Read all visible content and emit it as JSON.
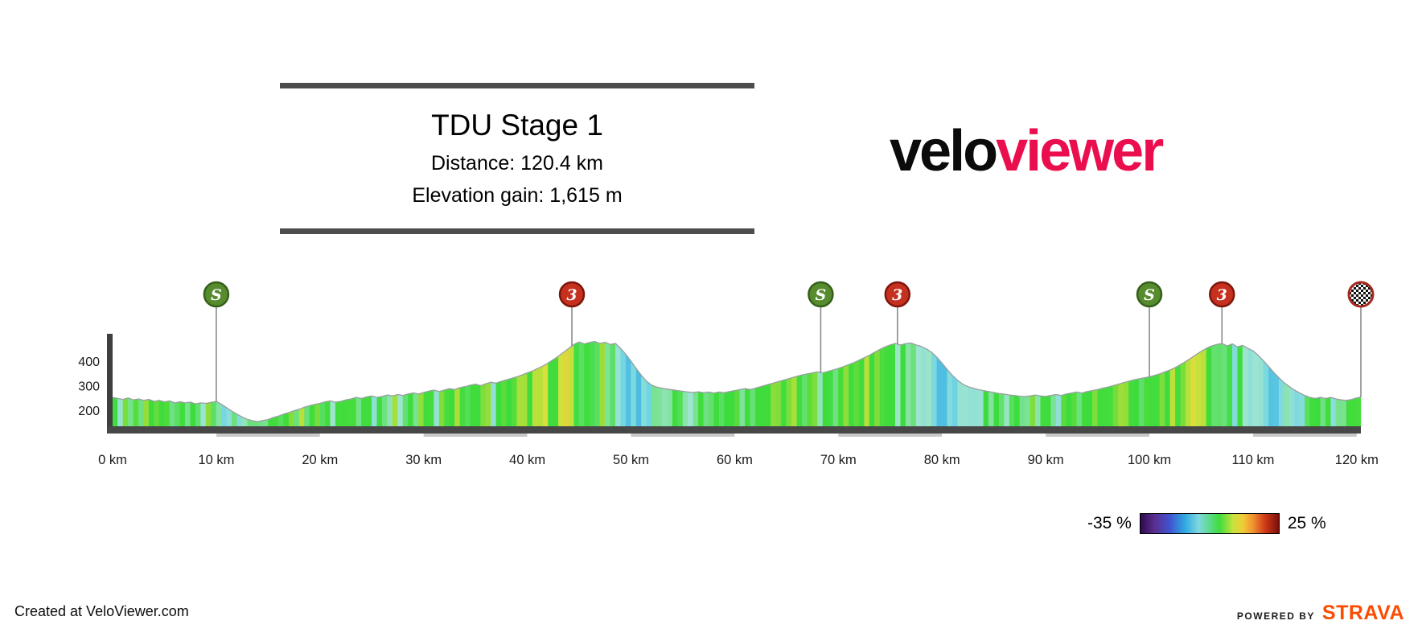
{
  "header": {
    "title": "TDU Stage 1",
    "distance": "Distance: 120.4 km",
    "elevation_gain": "Elevation gain: 1,615 m"
  },
  "logo": {
    "part1": "velo",
    "part2": "viewer",
    "part1_color": "#0b0b0b",
    "part2_color": "#ea0e4e"
  },
  "legend": {
    "min_label": "-35 %",
    "max_label": "25 %",
    "min": -35,
    "max": 25,
    "stops": [
      "#2d0a4e 0%",
      "#5b2d8e 10%",
      "#4053cf 21%",
      "#2fa8e0 32%",
      "#7fd8e0 42%",
      "#3fdc3f 57%",
      "#c8e23c 67%",
      "#f0cc38 74%",
      "#f29430 81%",
      "#cf3a18 90%",
      "#7a0e0a 100%"
    ]
  },
  "footer": {
    "credit": "Created at VeloViewer.com",
    "powered_by": "POWERED BY",
    "strava": "STRAVA",
    "strava_color": "#fc4c02"
  },
  "chart_style": {
    "axis_bar_color": "#3f3f3f",
    "baseline_bar_color": "#474747",
    "profile_line_color": "#98a0a0",
    "stem_color": "#8a8a8a",
    "marker_styles": {
      "sprint": {
        "fill": "#568c2e",
        "stroke": "#365f1a"
      },
      "cat3": {
        "fill": "#c5301f",
        "stroke": "#7d150c"
      },
      "finish": {
        "fill": "checker",
        "stroke": "#a5281e"
      }
    }
  },
  "chart_data": {
    "type": "area",
    "title": "TDU Stage 1",
    "distance_km": 120.4,
    "elevation_gain_m": 1615,
    "xlim": [
      0,
      120.4
    ],
    "y_ticks": [
      200,
      300,
      400
    ],
    "x_ticks": [
      "0 km",
      "10 km",
      "20 km",
      "30 km",
      "40 km",
      "50 km",
      "60 km",
      "70 km",
      "80 km",
      "90 km",
      "100 km",
      "110 km",
      "120 km"
    ],
    "x_tick_values": [
      0,
      10,
      20,
      30,
      40,
      50,
      60,
      70,
      80,
      90,
      100,
      110,
      120
    ],
    "gradient_scale": {
      "min": -35,
      "max": 25
    },
    "colormap": [
      [
        -35,
        "#2d0a4e"
      ],
      [
        -22,
        "#6b2fa8"
      ],
      [
        -14,
        "#4053cf"
      ],
      [
        -9,
        "#2fa8e0"
      ],
      [
        -5,
        "#6fd4e4"
      ],
      [
        -2,
        "#a0e6cf"
      ],
      [
        -0.6,
        "#5fe06a"
      ],
      [
        0,
        "#3cdc3c"
      ],
      [
        1.8,
        "#44dd3c"
      ],
      [
        3,
        "#9ade3a"
      ],
      [
        4.5,
        "#d6e23c"
      ],
      [
        6,
        "#f2c438"
      ],
      [
        8,
        "#f29430"
      ],
      [
        11,
        "#df5020"
      ],
      [
        15,
        "#b52412"
      ],
      [
        25,
        "#6e0a0a"
      ]
    ],
    "markers": [
      {
        "type": "sprint",
        "label": "S",
        "km": 10
      },
      {
        "type": "cat3",
        "label": "3",
        "km": 44.3
      },
      {
        "type": "sprint",
        "label": "S",
        "km": 68.3
      },
      {
        "type": "cat3",
        "label": "3",
        "km": 75.7
      },
      {
        "type": "sprint",
        "label": "S",
        "km": 100
      },
      {
        "type": "cat3",
        "label": "3",
        "km": 107
      },
      {
        "type": "finish",
        "label": "",
        "km": 120.4
      }
    ],
    "profile": [
      [
        0,
        252
      ],
      [
        0.5,
        248
      ],
      [
        1,
        244
      ],
      [
        1.5,
        250
      ],
      [
        2,
        242
      ],
      [
        2.5,
        246
      ],
      [
        3,
        240
      ],
      [
        3.5,
        244
      ],
      [
        4,
        236
      ],
      [
        4.5,
        240
      ],
      [
        5,
        234
      ],
      [
        5.5,
        238
      ],
      [
        6,
        230
      ],
      [
        6.5,
        234
      ],
      [
        7,
        230
      ],
      [
        7.5,
        233
      ],
      [
        8,
        226
      ],
      [
        8.5,
        230
      ],
      [
        9,
        228
      ],
      [
        9.5,
        232
      ],
      [
        10,
        236
      ],
      [
        10.5,
        224
      ],
      [
        11,
        210
      ],
      [
        11.5,
        196
      ],
      [
        12,
        184
      ],
      [
        12.5,
        172
      ],
      [
        13,
        163
      ],
      [
        13.5,
        157
      ],
      [
        14,
        153
      ],
      [
        14.5,
        158
      ],
      [
        15,
        162
      ],
      [
        15.5,
        170
      ],
      [
        16,
        176
      ],
      [
        16.5,
        184
      ],
      [
        17,
        190
      ],
      [
        17.5,
        198
      ],
      [
        18,
        204
      ],
      [
        18.5,
        212
      ],
      [
        19,
        218
      ],
      [
        19.5,
        224
      ],
      [
        20,
        228
      ],
      [
        20.5,
        234
      ],
      [
        21,
        238
      ],
      [
        21.5,
        232
      ],
      [
        22,
        236
      ],
      [
        22.5,
        242
      ],
      [
        23,
        246
      ],
      [
        23.5,
        252
      ],
      [
        24,
        248
      ],
      [
        24.5,
        254
      ],
      [
        25,
        258
      ],
      [
        25.5,
        252
      ],
      [
        26,
        256
      ],
      [
        26.5,
        262
      ],
      [
        27,
        258
      ],
      [
        27.5,
        264
      ],
      [
        28,
        260
      ],
      [
        28.5,
        266
      ],
      [
        29,
        270
      ],
      [
        29.5,
        266
      ],
      [
        30,
        272
      ],
      [
        30.5,
        278
      ],
      [
        31,
        282
      ],
      [
        31.5,
        276
      ],
      [
        32,
        282
      ],
      [
        32.5,
        288
      ],
      [
        33,
        284
      ],
      [
        33.5,
        292
      ],
      [
        34,
        296
      ],
      [
        34.5,
        302
      ],
      [
        35,
        306
      ],
      [
        35.5,
        300
      ],
      [
        36,
        308
      ],
      [
        36.5,
        314
      ],
      [
        37,
        310
      ],
      [
        37.5,
        318
      ],
      [
        38,
        324
      ],
      [
        38.5,
        330
      ],
      [
        39,
        336
      ],
      [
        39.5,
        344
      ],
      [
        40,
        352
      ],
      [
        40.5,
        360
      ],
      [
        41,
        370
      ],
      [
        41.5,
        380
      ],
      [
        42,
        392
      ],
      [
        42.5,
        406
      ],
      [
        43,
        420
      ],
      [
        43.5,
        436
      ],
      [
        44,
        452
      ],
      [
        44.5,
        468
      ],
      [
        45,
        478
      ],
      [
        45.5,
        470
      ],
      [
        46,
        476
      ],
      [
        46.5,
        480
      ],
      [
        47,
        472
      ],
      [
        47.5,
        477
      ],
      [
        48,
        468
      ],
      [
        48.5,
        472
      ],
      [
        49,
        452
      ],
      [
        49.5,
        428
      ],
      [
        50,
        400
      ],
      [
        50.5,
        370
      ],
      [
        51,
        342
      ],
      [
        51.5,
        318
      ],
      [
        52,
        302
      ],
      [
        52.5,
        294
      ],
      [
        53,
        290
      ],
      [
        53.5,
        286
      ],
      [
        54,
        283
      ],
      [
        54.5,
        280
      ],
      [
        55,
        277
      ],
      [
        55.5,
        274
      ],
      [
        56,
        272
      ],
      [
        56.5,
        275
      ],
      [
        57,
        271
      ],
      [
        57.5,
        274
      ],
      [
        58,
        270
      ],
      [
        58.5,
        274
      ],
      [
        59,
        271
      ],
      [
        59.5,
        276
      ],
      [
        60,
        280
      ],
      [
        60.5,
        284
      ],
      [
        61,
        288
      ],
      [
        61.5,
        284
      ],
      [
        62,
        290
      ],
      [
        62.5,
        296
      ],
      [
        63,
        302
      ],
      [
        63.5,
        308
      ],
      [
        64,
        314
      ],
      [
        64.5,
        320
      ],
      [
        65,
        326
      ],
      [
        65.5,
        332
      ],
      [
        66,
        338
      ],
      [
        66.5,
        344
      ],
      [
        67,
        348
      ],
      [
        67.5,
        352
      ],
      [
        68,
        356
      ],
      [
        68.5,
        352
      ],
      [
        69,
        358
      ],
      [
        69.5,
        364
      ],
      [
        70,
        370
      ],
      [
        70.5,
        378
      ],
      [
        71,
        386
      ],
      [
        71.5,
        394
      ],
      [
        72,
        404
      ],
      [
        72.5,
        414
      ],
      [
        73,
        424
      ],
      [
        73.5,
        436
      ],
      [
        74,
        448
      ],
      [
        74.5,
        458
      ],
      [
        75,
        466
      ],
      [
        75.5,
        472
      ],
      [
        76,
        466
      ],
      [
        76.5,
        471
      ],
      [
        77,
        474
      ],
      [
        77.5,
        466
      ],
      [
        78,
        460
      ],
      [
        78.5,
        450
      ],
      [
        79,
        436
      ],
      [
        79.5,
        416
      ],
      [
        80,
        392
      ],
      [
        80.5,
        366
      ],
      [
        81,
        342
      ],
      [
        81.5,
        322
      ],
      [
        82,
        306
      ],
      [
        82.5,
        296
      ],
      [
        83,
        290
      ],
      [
        83.5,
        284
      ],
      [
        84,
        280
      ],
      [
        84.5,
        276
      ],
      [
        85,
        272
      ],
      [
        85.5,
        268
      ],
      [
        86,
        266
      ],
      [
        86.5,
        262
      ],
      [
        87,
        260
      ],
      [
        87.5,
        257
      ],
      [
        88,
        255
      ],
      [
        88.5,
        258
      ],
      [
        89,
        262
      ],
      [
        89.5,
        258
      ],
      [
        90,
        256
      ],
      [
        90.5,
        260
      ],
      [
        91,
        264
      ],
      [
        91.5,
        260
      ],
      [
        92,
        266
      ],
      [
        92.5,
        270
      ],
      [
        93,
        274
      ],
      [
        93.5,
        270
      ],
      [
        94,
        276
      ],
      [
        94.5,
        280
      ],
      [
        95,
        284
      ],
      [
        95.5,
        290
      ],
      [
        96,
        294
      ],
      [
        96.5,
        300
      ],
      [
        97,
        306
      ],
      [
        97.5,
        312
      ],
      [
        98,
        318
      ],
      [
        98.5,
        324
      ],
      [
        99,
        328
      ],
      [
        99.5,
        332
      ],
      [
        100,
        336
      ],
      [
        100.5,
        342
      ],
      [
        101,
        348
      ],
      [
        101.5,
        356
      ],
      [
        102,
        364
      ],
      [
        102.5,
        374
      ],
      [
        103,
        386
      ],
      [
        103.5,
        398
      ],
      [
        104,
        412
      ],
      [
        104.5,
        426
      ],
      [
        105,
        440
      ],
      [
        105.5,
        452
      ],
      [
        106,
        462
      ],
      [
        106.5,
        468
      ],
      [
        107,
        472
      ],
      [
        107.5,
        462
      ],
      [
        108,
        470
      ],
      [
        108.5,
        458
      ],
      [
        109,
        464
      ],
      [
        109.5,
        452
      ],
      [
        110,
        442
      ],
      [
        110.5,
        424
      ],
      [
        111,
        402
      ],
      [
        111.5,
        378
      ],
      [
        112,
        354
      ],
      [
        112.5,
        332
      ],
      [
        113,
        312
      ],
      [
        113.5,
        296
      ],
      [
        114,
        282
      ],
      [
        114.5,
        270
      ],
      [
        115,
        260
      ],
      [
        115.5,
        252
      ],
      [
        116,
        248
      ],
      [
        116.5,
        252
      ],
      [
        117,
        248
      ],
      [
        117.5,
        252
      ],
      [
        118,
        246
      ],
      [
        118.5,
        242
      ],
      [
        119,
        240
      ],
      [
        119.5,
        244
      ],
      [
        120,
        250
      ],
      [
        120.4,
        253
      ]
    ]
  }
}
